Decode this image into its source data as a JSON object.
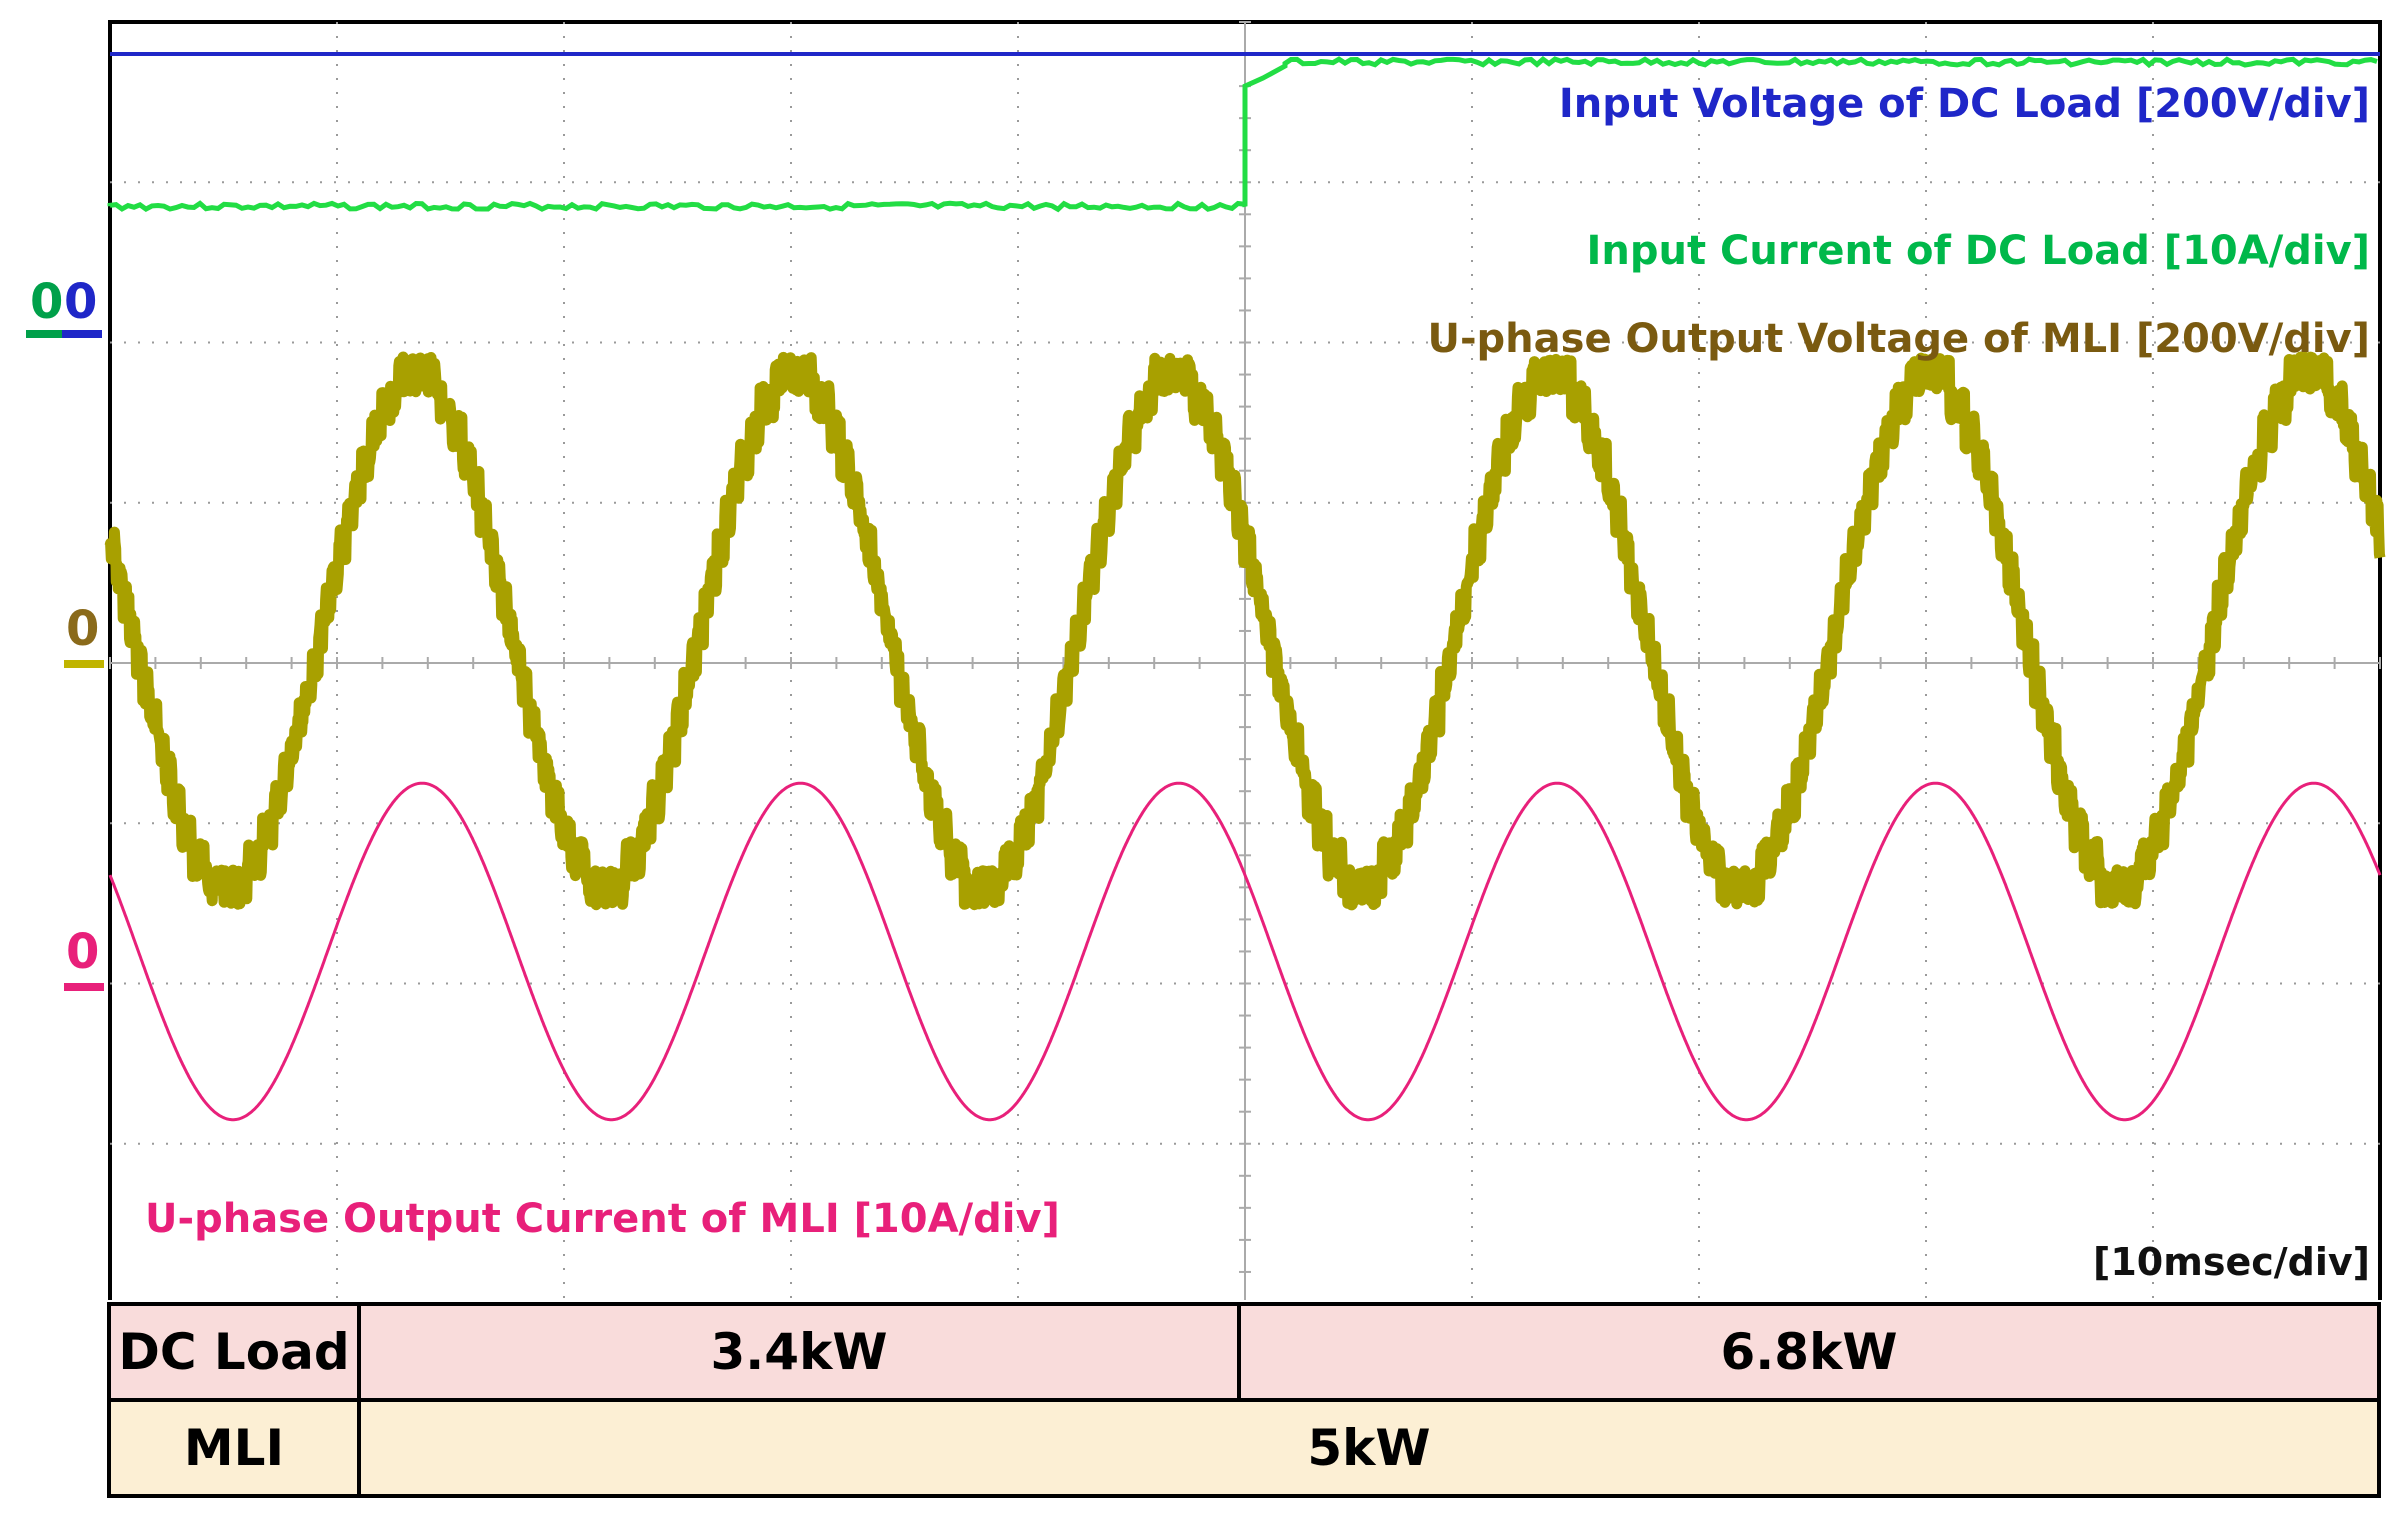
{
  "chart_data": {
    "type": "line",
    "title": "",
    "time_scale": "[10msec/div]",
    "x_divisions": 10,
    "y_divisions": 8,
    "grid": true,
    "step_event_division": 5,
    "series": [
      {
        "name": "Input Voltage of DC Load [200V/div]",
        "color": "#1f27c8",
        "ground_marker": "0",
        "ground_marker_color": "#1f27c8",
        "level_div": 3.8,
        "shape": "dc"
      },
      {
        "name": "Input Current of DC Load [10A/div]",
        "color": "#22dd44",
        "ground_marker": "0",
        "ground_marker_color": "#00a04a",
        "level_before_div": 2.85,
        "level_after_div": 3.75,
        "step_at_div": 5,
        "shape": "step"
      },
      {
        "name": "U-phase Output Voltage of MLI [200V/div]",
        "color": "#a8a000",
        "label_color": "#7a5a10",
        "ground_marker": "0",
        "ground_marker_color": "#8a6a1a",
        "ground_div": 0.2,
        "amplitude_div": 1.6,
        "cycles": 6,
        "shape": "staircase-sine"
      },
      {
        "name": "U-phase Output Current of MLI [10A/div]",
        "color": "#e8207a",
        "ground_marker": "0",
        "ground_marker_color": "#e8207a",
        "ground_div": -1.8,
        "amplitude_div": 1.05,
        "cycles": 6,
        "shape": "sine"
      }
    ]
  },
  "table": {
    "dc_label": "DC Load",
    "dc_before": "3.4kW",
    "dc_after": "6.8kW",
    "mli_label": "MLI",
    "mli_value": "5kW"
  }
}
